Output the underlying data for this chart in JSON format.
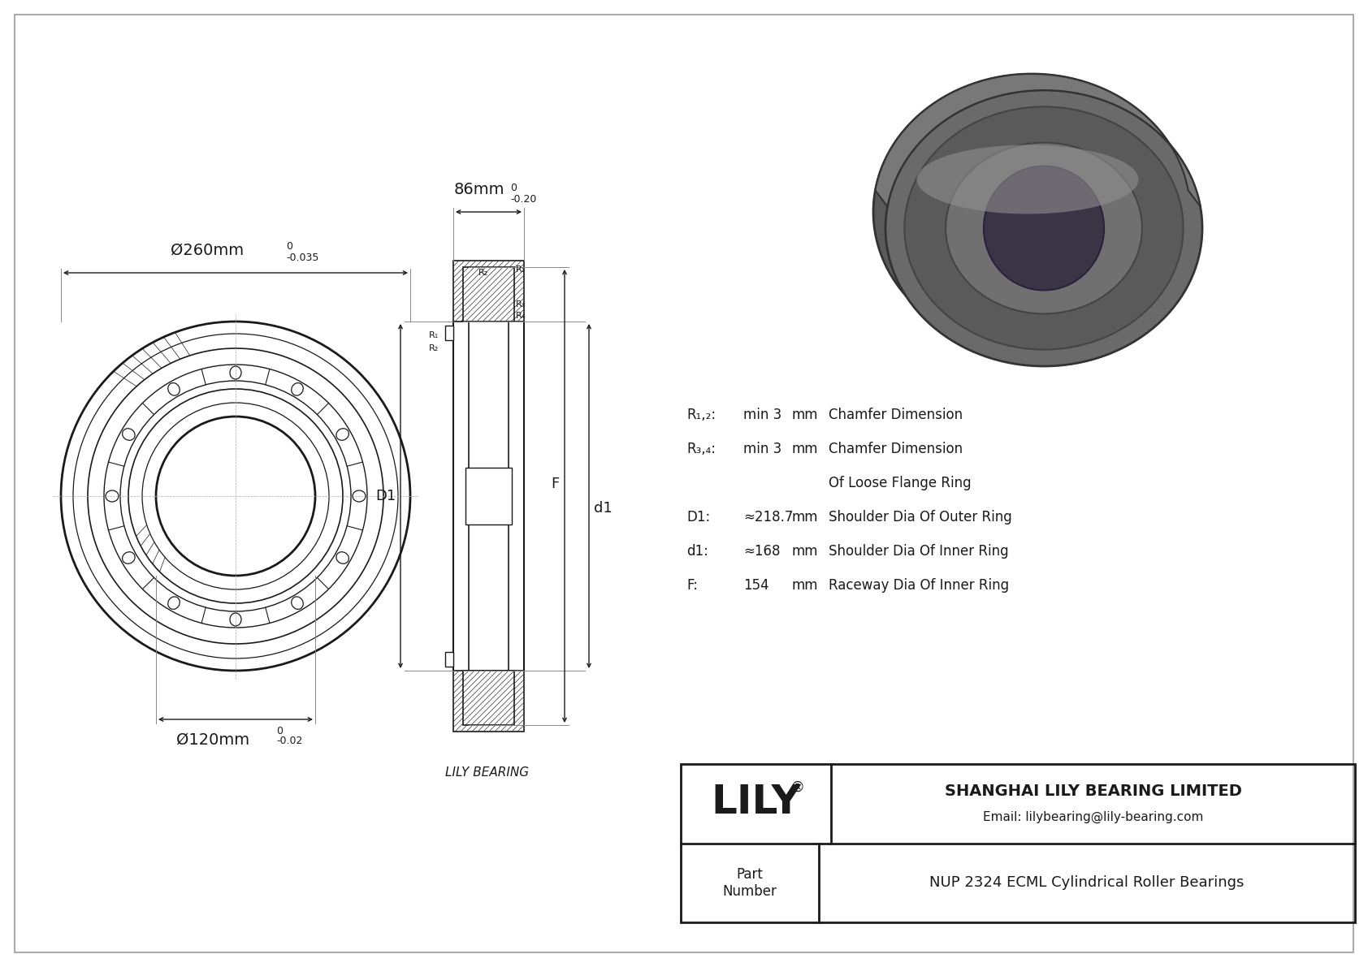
{
  "bg_color": "#ffffff",
  "line_color": "#1a1a1a",
  "company_name": "SHANGHAI LILY BEARING LIMITED",
  "company_email": "Email: lilybearing@lily-bearing.com",
  "part_label": "Part\nNumber",
  "part_number": "NUP 2324 ECML Cylindrical Roller Bearings",
  "lily_bearing_label": "LILY BEARING",
  "dim_outer": "Ø260mm",
  "dim_outer_tol_top": "0",
  "dim_outer_tol_bot": "-0.035",
  "dim_width": "86mm",
  "dim_width_tol_top": "0",
  "dim_width_tol_bot": "-0.20",
  "dim_inner": "Ø120mm",
  "dim_inner_tol_top": "0",
  "dim_inner_tol_bot": "-0.02",
  "specs": [
    [
      "R₁,₂:",
      "min 3",
      "mm",
      "Chamfer Dimension"
    ],
    [
      "R₃,₄:",
      "min 3",
      "mm",
      "Chamfer Dimension"
    ],
    [
      "",
      "",
      "",
      "Of Loose Flange Ring"
    ],
    [
      "D1:",
      "≈218.7",
      "mm",
      "Shoulder Dia Of Outer Ring"
    ],
    [
      "d1:",
      "≈168",
      "mm",
      "Shoulder Dia Of Inner Ring"
    ],
    [
      "F:",
      "154",
      "mm",
      "Raceway Dia Of Inner Ring"
    ]
  ]
}
